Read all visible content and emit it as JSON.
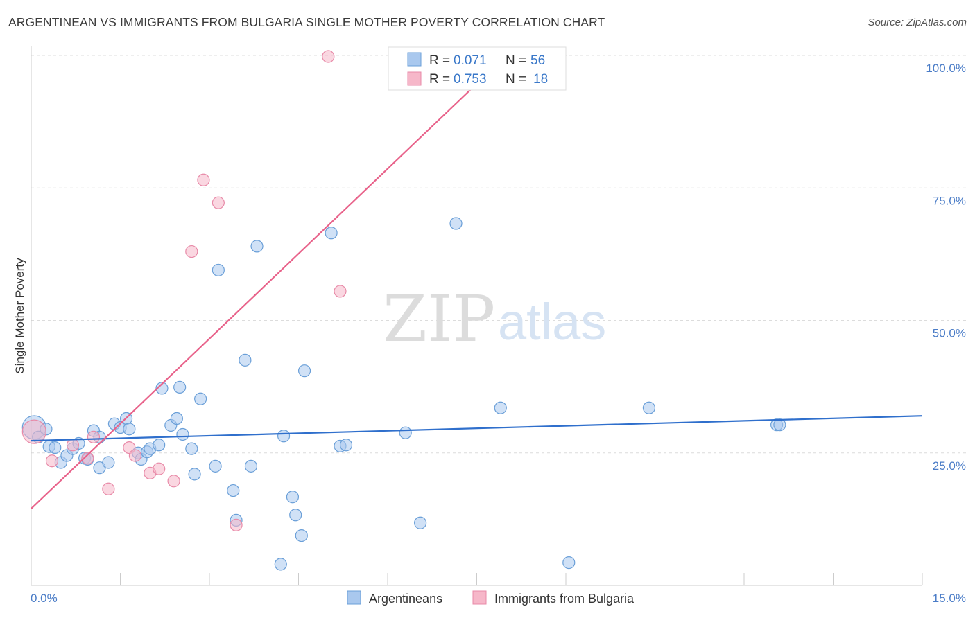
{
  "header": {
    "title": "ARGENTINEAN VS IMMIGRANTS FROM BULGARIA SINGLE MOTHER POVERTY CORRELATION CHART",
    "source": "Source: ZipAtlas.com"
  },
  "watermark": {
    "zip": "ZIP",
    "atlas": "atlas"
  },
  "legend_top": [
    {
      "r_label": "R =",
      "r_value": "0.071",
      "n_label": "N =",
      "n_value": "56",
      "color": "#a9c8ee"
    },
    {
      "r_label": "R =",
      "r_value": "0.753",
      "n_label": "N =",
      "n_value": "18",
      "color": "#f6b7c9"
    }
  ],
  "legend_bottom": [
    {
      "label": "Argentineans",
      "color": "#a9c8ee"
    },
    {
      "label": "Immigrants from Bulgaria",
      "color": "#f6b7c9"
    }
  ],
  "chart_data": {
    "type": "scatter",
    "title": "ARGENTINEAN VS IMMIGRANTS FROM BULGARIA SINGLE MOTHER POVERTY CORRELATION CHART",
    "xlabel": "",
    "ylabel": "Single Mother Poverty",
    "xlim": [
      0,
      15
    ],
    "ylim": [
      0,
      100
    ],
    "x_tick_labels": {
      "min": "0.0%",
      "max": "15.0%"
    },
    "y_ticks": [
      {
        "value": 25,
        "label": "25.0%"
      },
      {
        "value": 50,
        "label": "50.0%"
      },
      {
        "value": 75,
        "label": "75.0%"
      },
      {
        "value": 100,
        "label": "100.0%"
      }
    ],
    "grid": true,
    "colors": {
      "blue_fill": "#a9c8ee",
      "blue_stroke": "#6a9fd8",
      "blue_line": "#2f6fcc",
      "pink_fill": "#f6b7c9",
      "pink_stroke": "#e88aa8",
      "pink_line": "#e8628a",
      "tick_text": "#4a7cc7"
    },
    "series": [
      {
        "name": "Argentineans",
        "color": "blue",
        "trend": {
          "x": [
            0,
            15
          ],
          "y": [
            27.3,
            32.0
          ]
        },
        "points": [
          {
            "x": 0.05,
            "y": 29.8,
            "big": true
          },
          {
            "x": 0.12,
            "y": 28.0
          },
          {
            "x": 0.25,
            "y": 29.5
          },
          {
            "x": 0.3,
            "y": 26.2
          },
          {
            "x": 0.4,
            "y": 26.0
          },
          {
            "x": 0.5,
            "y": 23.2
          },
          {
            "x": 0.6,
            "y": 24.5
          },
          {
            "x": 0.7,
            "y": 25.8
          },
          {
            "x": 0.8,
            "y": 26.8
          },
          {
            "x": 0.9,
            "y": 24.0
          },
          {
            "x": 0.95,
            "y": 23.8
          },
          {
            "x": 1.05,
            "y": 29.2
          },
          {
            "x": 1.15,
            "y": 28.0
          },
          {
            "x": 1.15,
            "y": 22.2
          },
          {
            "x": 1.3,
            "y": 23.2
          },
          {
            "x": 1.4,
            "y": 30.5
          },
          {
            "x": 1.5,
            "y": 29.8
          },
          {
            "x": 1.6,
            "y": 31.5
          },
          {
            "x": 1.65,
            "y": 29.5
          },
          {
            "x": 1.8,
            "y": 25.0
          },
          {
            "x": 1.85,
            "y": 23.8
          },
          {
            "x": 1.95,
            "y": 25.2
          },
          {
            "x": 2.0,
            "y": 25.8
          },
          {
            "x": 2.15,
            "y": 26.5
          },
          {
            "x": 2.2,
            "y": 37.2
          },
          {
            "x": 2.35,
            "y": 30.2
          },
          {
            "x": 2.45,
            "y": 31.5
          },
          {
            "x": 2.5,
            "y": 37.4
          },
          {
            "x": 2.55,
            "y": 28.5
          },
          {
            "x": 2.7,
            "y": 25.8
          },
          {
            "x": 2.75,
            "y": 21.0
          },
          {
            "x": 2.85,
            "y": 35.2
          },
          {
            "x": 3.1,
            "y": 22.5
          },
          {
            "x": 3.15,
            "y": 59.5
          },
          {
            "x": 3.4,
            "y": 17.9
          },
          {
            "x": 3.45,
            "y": 12.3
          },
          {
            "x": 3.6,
            "y": 42.5
          },
          {
            "x": 3.7,
            "y": 22.5
          },
          {
            "x": 3.8,
            "y": 64.0
          },
          {
            "x": 4.2,
            "y": 4.0
          },
          {
            "x": 4.25,
            "y": 28.2
          },
          {
            "x": 4.4,
            "y": 16.7
          },
          {
            "x": 4.45,
            "y": 13.3
          },
          {
            "x": 4.55,
            "y": 9.4
          },
          {
            "x": 4.6,
            "y": 40.5
          },
          {
            "x": 5.05,
            "y": 66.5
          },
          {
            "x": 5.2,
            "y": 26.3
          },
          {
            "x": 5.3,
            "y": 26.5
          },
          {
            "x": 6.3,
            "y": 28.8
          },
          {
            "x": 6.55,
            "y": 11.8
          },
          {
            "x": 7.15,
            "y": 68.3
          },
          {
            "x": 7.9,
            "y": 33.5
          },
          {
            "x": 9.05,
            "y": 4.3
          },
          {
            "x": 10.4,
            "y": 33.5
          },
          {
            "x": 12.55,
            "y": 30.3
          },
          {
            "x": 12.6,
            "y": 30.3
          }
        ]
      },
      {
        "name": "Immigrants from Bulgaria",
        "color": "pink",
        "trend": {
          "x": [
            0,
            8.0
          ],
          "y": [
            14.5,
            100
          ]
        },
        "points": [
          {
            "x": 0.05,
            "y": 29.0,
            "big": true
          },
          {
            "x": 0.35,
            "y": 23.5
          },
          {
            "x": 0.7,
            "y": 26.5
          },
          {
            "x": 0.95,
            "y": 24.0
          },
          {
            "x": 1.05,
            "y": 28.0
          },
          {
            "x": 1.3,
            "y": 18.2
          },
          {
            "x": 1.65,
            "y": 26.0
          },
          {
            "x": 1.75,
            "y": 24.5
          },
          {
            "x": 2.0,
            "y": 21.2
          },
          {
            "x": 2.15,
            "y": 22.0
          },
          {
            "x": 2.4,
            "y": 19.7
          },
          {
            "x": 2.7,
            "y": 63.0
          },
          {
            "x": 2.9,
            "y": 76.5
          },
          {
            "x": 3.15,
            "y": 72.2
          },
          {
            "x": 3.45,
            "y": 11.4
          },
          {
            "x": 5.0,
            "y": 99.8
          },
          {
            "x": 5.2,
            "y": 55.5
          },
          {
            "x": 7.9,
            "y": 99.8
          }
        ]
      }
    ]
  }
}
